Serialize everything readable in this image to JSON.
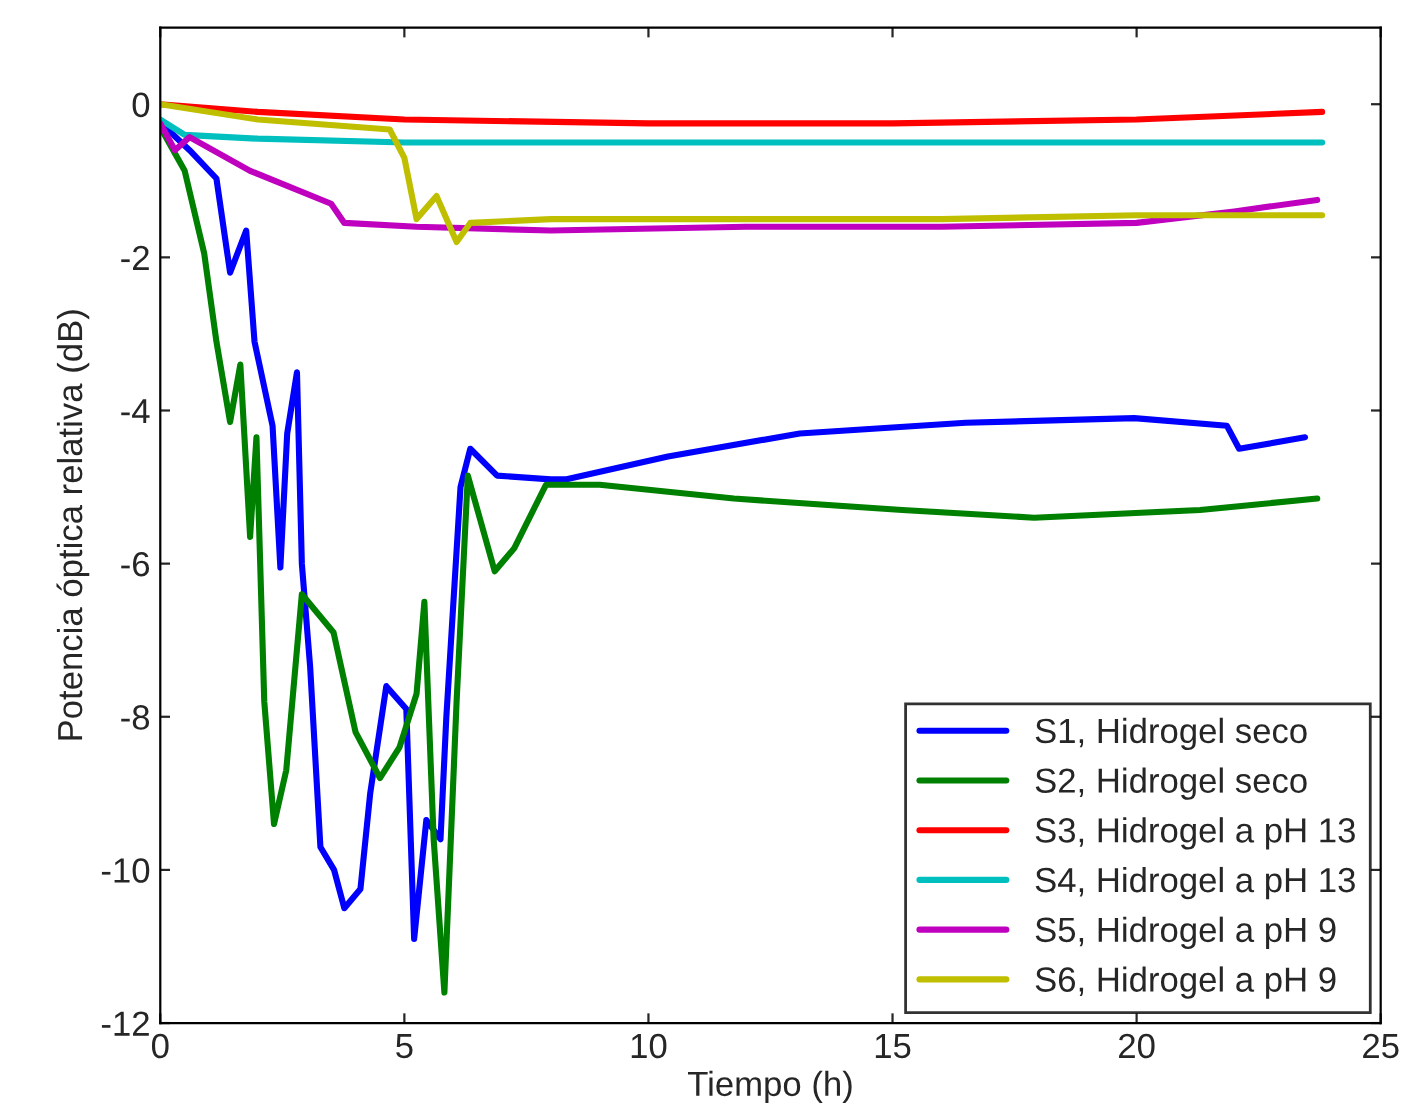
{
  "chart_data": {
    "type": "line",
    "xlabel": "Tiempo (h)",
    "ylabel": "Potencia óptica relativa (dB)",
    "xlim": [
      0,
      25
    ],
    "ylim": [
      -12,
      1
    ],
    "xticks": [
      0,
      5,
      10,
      15,
      20,
      25
    ],
    "yticks": [
      -12,
      -10,
      -8,
      -6,
      -4,
      -2,
      0
    ],
    "grid": false,
    "legend": "bottom right",
    "marker": "none",
    "line_style": "solid",
    "series": [
      {
        "name": "S1, Hidrogel seco",
        "color": "#0000ff",
        "x": [
          0,
          0.6,
          1.15,
          1.43,
          1.76,
          1.93,
          2.3,
          2.46,
          2.6,
          2.8,
          2.9,
          3.07,
          3.28,
          3.56,
          3.77,
          4.1,
          4.3,
          4.63,
          5.04,
          5.2,
          5.45,
          5.74,
          5.86,
          6.15,
          6.35,
          6.9,
          8.0,
          8.3,
          10.4,
          13.1,
          16.5,
          19.95,
          21.85,
          22.1,
          23.45
        ],
        "values": [
          -0.24,
          -0.6,
          -0.97,
          -2.2,
          -1.65,
          -3.1,
          -4.2,
          -6.05,
          -4.3,
          -3.5,
          -6.0,
          -7.35,
          -9.7,
          -10.0,
          -10.5,
          -10.25,
          -9.0,
          -7.6,
          -7.9,
          -10.9,
          -9.35,
          -9.6,
          -8.0,
          -5.0,
          -4.5,
          -4.85,
          -4.9,
          -4.9,
          -4.6,
          -4.3,
          -4.16,
          -4.1,
          -4.2,
          -4.5,
          -4.35
        ]
      },
      {
        "name": "S2, Hidrogel seco",
        "color": "#008000",
        "x": [
          0,
          0.5,
          0.9,
          1.15,
          1.43,
          1.64,
          1.84,
          1.97,
          2.13,
          2.33,
          2.58,
          2.9,
          3.55,
          4.0,
          4.5,
          4.9,
          5.25,
          5.41,
          5.6,
          5.82,
          6.07,
          6.3,
          6.85,
          7.25,
          7.9,
          9.0,
          11.75,
          15.2,
          17.9,
          21.3,
          23.7
        ],
        "values": [
          -0.3,
          -0.87,
          -1.95,
          -3.1,
          -4.15,
          -3.4,
          -5.65,
          -4.35,
          -7.8,
          -9.4,
          -8.7,
          -6.4,
          -6.9,
          -8.2,
          -8.8,
          -8.4,
          -7.7,
          -6.5,
          -9.6,
          -11.6,
          -7.8,
          -4.85,
          -6.1,
          -5.8,
          -4.97,
          -4.97,
          -5.15,
          -5.3,
          -5.4,
          -5.3,
          -5.15
        ]
      },
      {
        "name": "S3, Hidrogel a pH 13",
        "color": "#ff0000",
        "x": [
          0,
          2,
          5,
          10,
          15,
          20,
          23.8
        ],
        "values": [
          0,
          -0.1,
          -0.2,
          -0.25,
          -0.25,
          -0.2,
          -0.1
        ]
      },
      {
        "name": "S4, Hidrogel a pH 13",
        "color": "#00bfbf",
        "x": [
          0,
          0.5,
          2,
          5,
          10,
          15,
          20,
          23.8
        ],
        "values": [
          -0.2,
          -0.4,
          -0.45,
          -0.5,
          -0.5,
          -0.5,
          -0.5,
          -0.5
        ]
      },
      {
        "name": "S5, Hidrogel a pH 9",
        "color": "#bf00bf",
        "x": [
          0,
          0.3,
          0.6,
          1.84,
          3.5,
          3.77,
          5.25,
          8,
          12,
          16,
          20,
          22,
          23.7
        ],
        "values": [
          -0.25,
          -0.6,
          -0.43,
          -0.87,
          -1.3,
          -1.55,
          -1.6,
          -1.65,
          -1.6,
          -1.6,
          -1.55,
          -1.4,
          -1.25
        ]
      },
      {
        "name": "S6, Hidrogel a pH 9",
        "color": "#bfbf00",
        "x": [
          0,
          2,
          4.7,
          5.0,
          5.25,
          5.66,
          6.07,
          6.35,
          8,
          12,
          16,
          20,
          23.8
        ],
        "values": [
          0,
          -0.2,
          -0.33,
          -0.7,
          -1.5,
          -1.2,
          -1.8,
          -1.55,
          -1.5,
          -1.5,
          -1.5,
          -1.45,
          -1.45
        ]
      }
    ]
  }
}
